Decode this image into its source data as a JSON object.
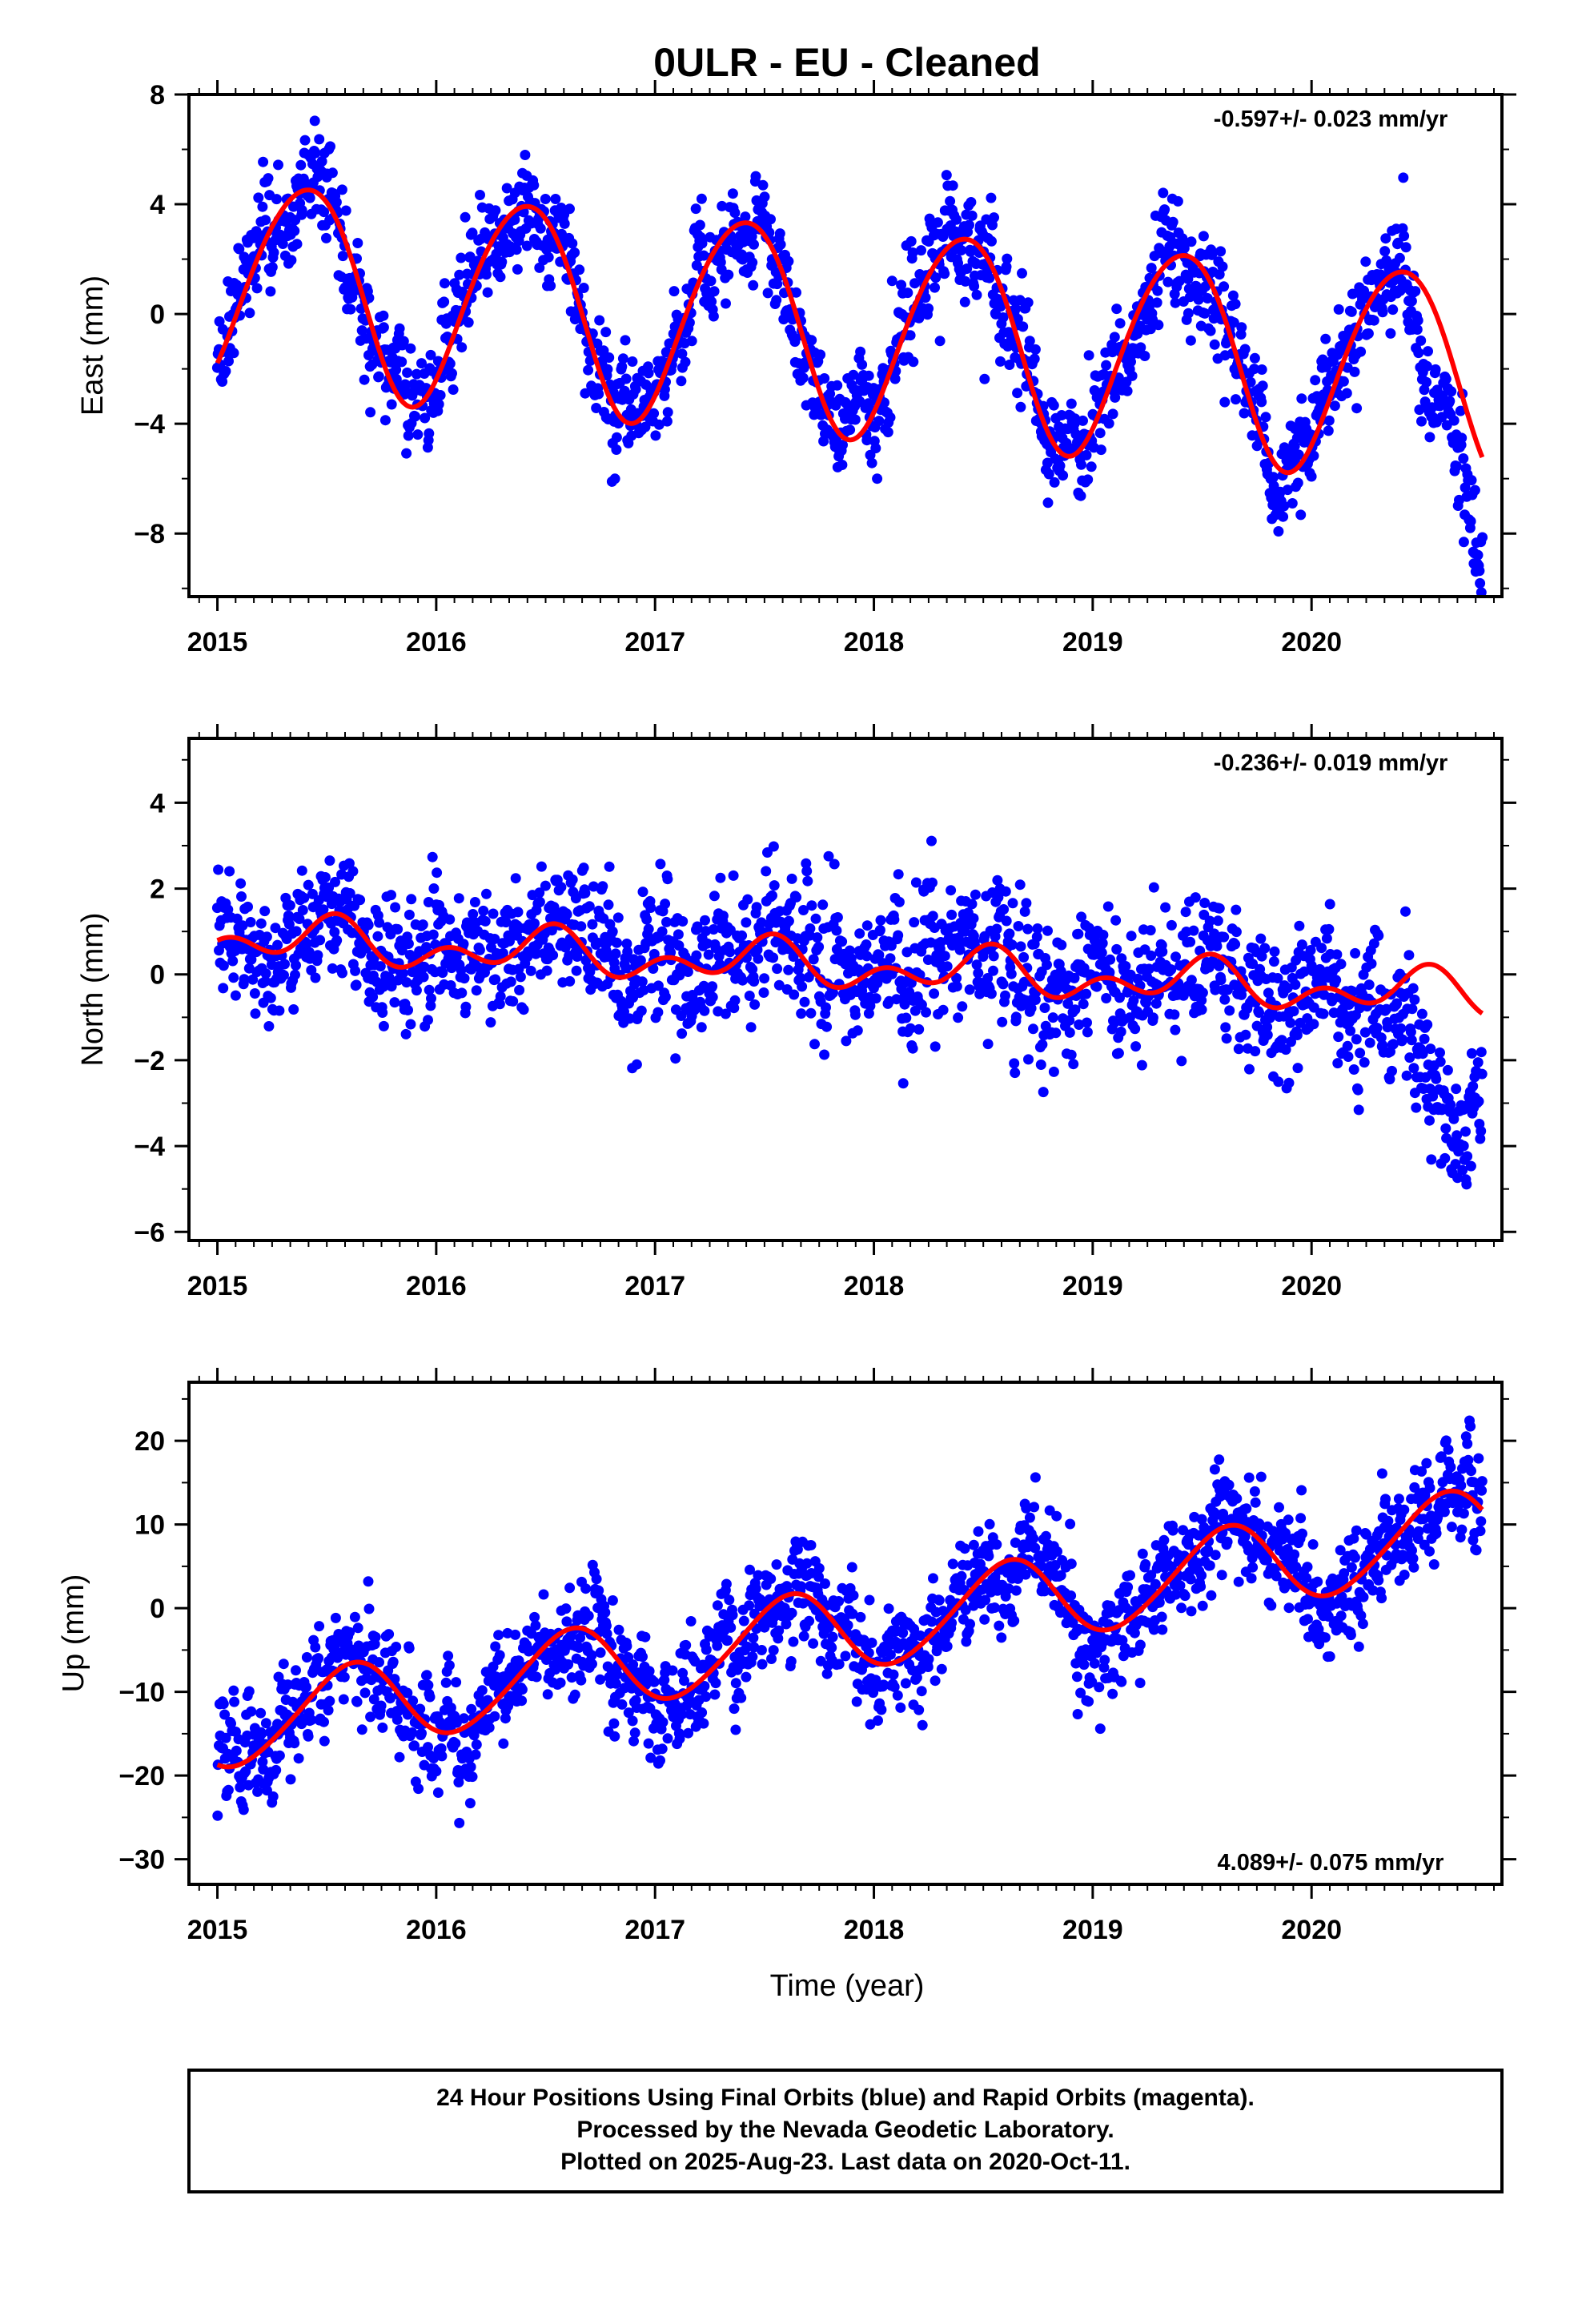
{
  "title": "0ULR  - EU - Cleaned",
  "xlabel": "Time (year)",
  "footer": {
    "lines": [
      "24 Hour Positions Using Final Orbits (blue) and Rapid Orbits (magenta).",
      "Processed by the Nevada Geodetic Laboratory.",
      "Plotted on 2025-Aug-23. Last data on 2020-Oct-11."
    ]
  },
  "colors": {
    "points": "#0000ff",
    "model": "#ff0000",
    "frame": "#000000"
  },
  "chart_data": [
    {
      "type": "scatter",
      "name": "East",
      "ylabel": "East (mm)",
      "rate": "-0.597+/- 0.023 mm/yr",
      "xlim": [
        2014.87,
        2020.87
      ],
      "ylim": [
        -10.3,
        8.0
      ],
      "xticks": [
        2015,
        2016,
        2017,
        2018,
        2019,
        2020
      ],
      "yticks": [
        -8,
        -4,
        0,
        4,
        8
      ],
      "ytick_labels": [
        "−8",
        "−4",
        "0",
        "4",
        "8"
      ],
      "data_range": [
        2015.0,
        2020.78
      ],
      "model": {
        "offset": -0.6,
        "trend": -0.597,
        "ref_year": 2018.0,
        "annual_amp": 3.8,
        "annual_peak": 0.4,
        "semiannual_amp": 0.3,
        "semiannual_peak": 0.1
      },
      "scatter_sigma": 1.1,
      "late_offset": {
        "start": 2020.45,
        "shift": -3.0
      }
    },
    {
      "type": "scatter",
      "name": "North",
      "ylabel": "North (mm)",
      "rate": "-0.236+/- 0.019 mm/yr",
      "xlim": [
        2014.87,
        2020.87
      ],
      "ylim": [
        -6.2,
        5.5
      ],
      "xticks": [
        2015,
        2016,
        2017,
        2018,
        2019,
        2020
      ],
      "yticks": [
        -6,
        -4,
        -2,
        0,
        2,
        4
      ],
      "ytick_labels": [
        "−6",
        "−4",
        "−2",
        "0",
        "2",
        "4"
      ],
      "data_range": [
        2015.0,
        2020.78
      ],
      "model": {
        "offset": 0.15,
        "trend": -0.236,
        "ref_year": 2018.0,
        "annual_amp": 0.35,
        "annual_peak": 0.5,
        "semiannual_amp": 0.35,
        "semiannual_peak": 0.05
      },
      "scatter_sigma": 0.9,
      "late_offset": {
        "start": 2020.45,
        "shift": -2.8
      }
    },
    {
      "type": "scatter",
      "name": "Up",
      "ylabel": "Up (mm)",
      "rate": "4.089+/- 0.075 mm/yr",
      "xlim": [
        2014.87,
        2020.87
      ],
      "ylim": [
        -33,
        27
      ],
      "xticks": [
        2015,
        2016,
        2017,
        2018,
        2019,
        2020
      ],
      "yticks": [
        -30,
        -20,
        -10,
        0,
        10,
        20
      ],
      "ytick_labels": [
        "−30",
        "−20",
        "−10",
        "0",
        "10",
        "20"
      ],
      "data_range": [
        2015.0,
        2020.78
      ],
      "model": {
        "offset": -2.0,
        "trend": 4.089,
        "ref_year": 2018.0,
        "annual_amp": 5.0,
        "annual_peak": 0.6,
        "semiannual_amp": 0.5,
        "semiannual_peak": 0.2
      },
      "scatter_sigma": 3.8,
      "late_offset": {
        "start": 2030.0,
        "shift": 0
      }
    }
  ]
}
